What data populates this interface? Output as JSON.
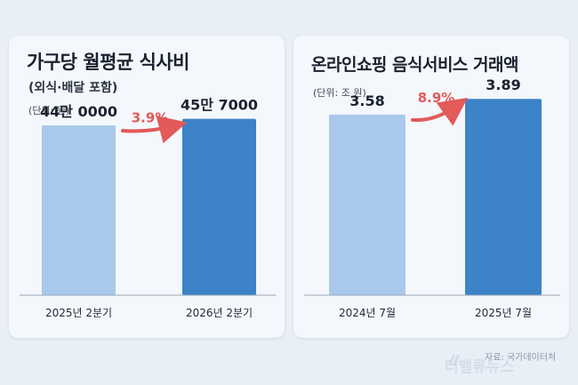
{
  "colors": {
    "bar_before": "#a9c9ec",
    "bar_after": "#3c83c7",
    "growth_text": "#e25a5a"
  },
  "chart_data": [
    {
      "type": "bar",
      "title": "가구당 월평균 식사비",
      "subtitle": "(외식·배달 포함)",
      "unit": "(단위: 원)",
      "categories": [
        "2025년 2분기",
        "2026년 2분기"
      ],
      "values": [
        440000,
        457000
      ],
      "value_labels": [
        "44만 0000",
        "45만 7000"
      ],
      "growth_label": "3.9%",
      "ylim": [
        0,
        470000
      ],
      "grid": false
    },
    {
      "type": "bar",
      "title": "온라인쇼핑 음식서비스 거래액",
      "unit": "(단위: 조 원)",
      "categories": [
        "2024년 7월",
        "2025년 7월"
      ],
      "values": [
        3.58,
        3.89
      ],
      "value_labels": [
        "3.58",
        "3.89"
      ],
      "growth_label": "8.9%",
      "ylim": [
        0,
        4.0
      ],
      "grid": false
    }
  ],
  "source": "자료: 국가데이터처",
  "watermark": "더밸류뉴스"
}
